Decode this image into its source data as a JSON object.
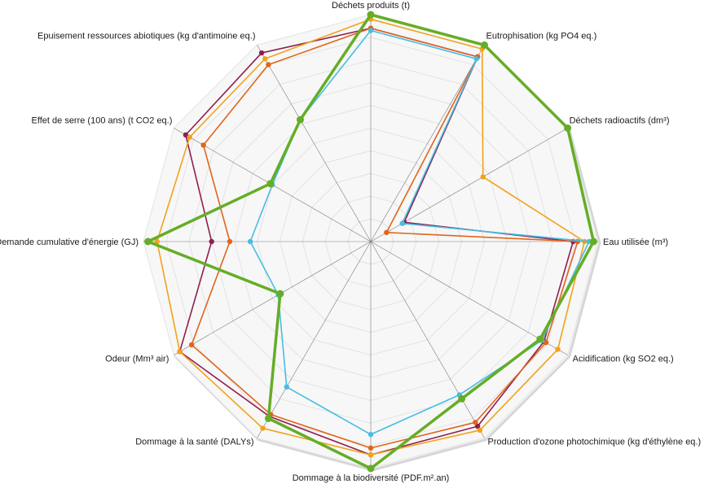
{
  "chart_data": {
    "type": "radar",
    "axes": [
      "Déchets produits (t)",
      "Eutrophisation (kg PO4 eq.)",
      "Déchets radioactifs (dm³)",
      "Eau utilisée (m³)",
      "Acidification (kg SO2 eq.)",
      "Production d'ozone photochimique (kg d'éthylène eq.)",
      "Dommage à la biodiversité (PDF.m².an)",
      "Dommage à la santé (DALYs)",
      "Odeur (Mm³ air)",
      "Demande cumulative d'énergie (GJ)",
      "Effet de serre (100 ans) (t CO2 eq.)",
      "Epuisement ressources abiotiques (kg d'antimoine eq.)"
    ],
    "range": [
      0,
      1
    ],
    "grid_levels": 10,
    "grid": true,
    "legend": "none",
    "series": [
      {
        "color": "#8e1f4f",
        "values": [
          0.94,
          0.94,
          0.17,
          0.89,
          0.88,
          0.94,
          0.94,
          0.89,
          0.97,
          0.7,
          0.94,
          0.96
        ]
      },
      {
        "color": "#e0651b",
        "values": [
          0.94,
          0.94,
          0.08,
          0.91,
          0.89,
          0.92,
          0.91,
          0.88,
          0.91,
          0.62,
          0.85,
          0.9
        ]
      },
      {
        "color": "#f2a21a",
        "values": [
          0.98,
          0.98,
          0.57,
          0.94,
          0.95,
          0.96,
          0.94,
          0.95,
          0.97,
          0.94,
          0.92,
          0.93
        ]
      },
      {
        "color": "#45bde4",
        "values": [
          0.93,
          0.93,
          0.16,
          0.96,
          0.87,
          0.78,
          0.85,
          0.74,
          0.47,
          0.53,
          0.5,
          0.62
        ]
      },
      {
        "color": "#65ad26",
        "values": [
          1.0,
          1.0,
          1.0,
          0.98,
          0.86,
          0.8,
          1.0,
          0.9,
          0.46,
          0.98,
          0.51,
          0.62
        ]
      }
    ]
  }
}
